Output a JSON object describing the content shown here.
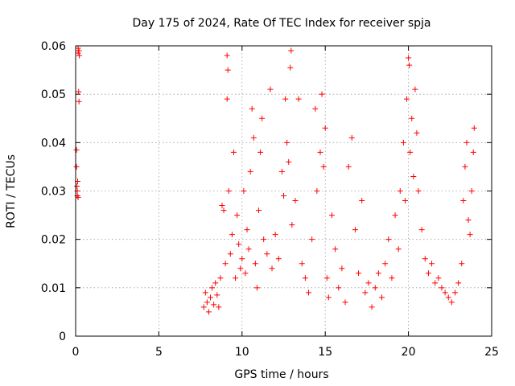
{
  "chart_data": {
    "type": "scatter",
    "title": "Day 175 of 2024, Rate Of TEC Index for receiver spja",
    "xlabel": "GPS time / hours",
    "ylabel": "ROTI / TECUs",
    "xlim": [
      0,
      25
    ],
    "ylim": [
      0,
      0.06
    ],
    "xticks": [
      0,
      5,
      10,
      15,
      20,
      25
    ],
    "yticks": [
      0,
      0.01,
      0.02,
      0.03,
      0.04,
      0.05,
      0.06
    ],
    "xtick_labels": [
      "0",
      "5",
      "10",
      "15",
      "20",
      "25"
    ],
    "ytick_labels": [
      "0",
      "0.01",
      "0.02",
      "0.03",
      "0.04",
      "0.05",
      "0.06"
    ],
    "grid": true,
    "legend": "none",
    "marker": "plus",
    "color": "#ff0000",
    "points": [
      [
        0.05,
        0.035
      ],
      [
        0.05,
        0.0385
      ],
      [
        0.08,
        0.031
      ],
      [
        0.1,
        0.029
      ],
      [
        0.1,
        0.03
      ],
      [
        0.12,
        0.032
      ],
      [
        0.15,
        0.0595
      ],
      [
        0.15,
        0.0585
      ],
      [
        0.18,
        0.0505
      ],
      [
        0.2,
        0.059
      ],
      [
        0.2,
        0.0485
      ],
      [
        0.22,
        0.058
      ],
      [
        0.15,
        0.0287
      ],
      [
        7.7,
        0.006
      ],
      [
        7.8,
        0.009
      ],
      [
        7.9,
        0.007
      ],
      [
        8.0,
        0.005
      ],
      [
        8.1,
        0.008
      ],
      [
        8.2,
        0.01
      ],
      [
        8.3,
        0.0065
      ],
      [
        8.4,
        0.011
      ],
      [
        8.5,
        0.0085
      ],
      [
        8.6,
        0.006
      ],
      [
        8.7,
        0.012
      ],
      [
        8.8,
        0.027
      ],
      [
        8.9,
        0.026
      ],
      [
        9.0,
        0.015
      ],
      [
        9.1,
        0.049
      ],
      [
        9.1,
        0.058
      ],
      [
        9.15,
        0.055
      ],
      [
        9.2,
        0.03
      ],
      [
        9.3,
        0.017
      ],
      [
        9.4,
        0.021
      ],
      [
        9.5,
        0.038
      ],
      [
        9.6,
        0.012
      ],
      [
        9.7,
        0.025
      ],
      [
        9.8,
        0.019
      ],
      [
        9.9,
        0.014
      ],
      [
        10.0,
        0.016
      ],
      [
        10.1,
        0.03
      ],
      [
        10.2,
        0.013
      ],
      [
        10.3,
        0.022
      ],
      [
        10.4,
        0.018
      ],
      [
        10.5,
        0.034
      ],
      [
        10.6,
        0.047
      ],
      [
        10.7,
        0.041
      ],
      [
        10.8,
        0.015
      ],
      [
        10.9,
        0.01
      ],
      [
        11.0,
        0.026
      ],
      [
        11.1,
        0.038
      ],
      [
        11.2,
        0.045
      ],
      [
        11.3,
        0.02
      ],
      [
        11.5,
        0.017
      ],
      [
        11.7,
        0.051
      ],
      [
        11.8,
        0.014
      ],
      [
        12.0,
        0.021
      ],
      [
        12.2,
        0.016
      ],
      [
        12.4,
        0.034
      ],
      [
        12.5,
        0.029
      ],
      [
        12.6,
        0.049
      ],
      [
        12.7,
        0.04
      ],
      [
        12.8,
        0.036
      ],
      [
        12.9,
        0.0555
      ],
      [
        12.95,
        0.059
      ],
      [
        13.0,
        0.023
      ],
      [
        13.2,
        0.028
      ],
      [
        13.4,
        0.049
      ],
      [
        13.6,
        0.015
      ],
      [
        13.8,
        0.012
      ],
      [
        14.0,
        0.009
      ],
      [
        14.2,
        0.02
      ],
      [
        14.4,
        0.047
      ],
      [
        14.5,
        0.03
      ],
      [
        14.7,
        0.038
      ],
      [
        14.8,
        0.05
      ],
      [
        14.9,
        0.035
      ],
      [
        15.0,
        0.043
      ],
      [
        15.1,
        0.012
      ],
      [
        15.2,
        0.008
      ],
      [
        15.4,
        0.025
      ],
      [
        15.6,
        0.018
      ],
      [
        15.8,
        0.01
      ],
      [
        16.0,
        0.014
      ],
      [
        16.2,
        0.007
      ],
      [
        16.4,
        0.035
      ],
      [
        16.6,
        0.041
      ],
      [
        16.8,
        0.022
      ],
      [
        17.0,
        0.013
      ],
      [
        17.2,
        0.028
      ],
      [
        17.4,
        0.009
      ],
      [
        17.6,
        0.011
      ],
      [
        17.8,
        0.006
      ],
      [
        18.0,
        0.01
      ],
      [
        18.2,
        0.013
      ],
      [
        18.4,
        0.008
      ],
      [
        18.6,
        0.015
      ],
      [
        18.8,
        0.02
      ],
      [
        19.0,
        0.012
      ],
      [
        19.2,
        0.025
      ],
      [
        19.4,
        0.018
      ],
      [
        19.5,
        0.03
      ],
      [
        19.7,
        0.04
      ],
      [
        19.8,
        0.028
      ],
      [
        19.9,
        0.049
      ],
      [
        20.0,
        0.0575
      ],
      [
        20.05,
        0.056
      ],
      [
        20.1,
        0.038
      ],
      [
        20.2,
        0.045
      ],
      [
        20.3,
        0.033
      ],
      [
        20.4,
        0.051
      ],
      [
        20.5,
        0.042
      ],
      [
        20.6,
        0.03
      ],
      [
        20.8,
        0.022
      ],
      [
        21.0,
        0.016
      ],
      [
        21.2,
        0.013
      ],
      [
        21.4,
        0.015
      ],
      [
        21.6,
        0.011
      ],
      [
        21.8,
        0.012
      ],
      [
        22.0,
        0.01
      ],
      [
        22.2,
        0.009
      ],
      [
        22.4,
        0.008
      ],
      [
        22.6,
        0.007
      ],
      [
        22.8,
        0.009
      ],
      [
        23.0,
        0.011
      ],
      [
        23.2,
        0.015
      ],
      [
        23.3,
        0.028
      ],
      [
        23.4,
        0.035
      ],
      [
        23.5,
        0.04
      ],
      [
        23.6,
        0.024
      ],
      [
        23.7,
        0.021
      ],
      [
        23.8,
        0.03
      ],
      [
        23.9,
        0.038
      ],
      [
        23.95,
        0.043
      ]
    ]
  }
}
